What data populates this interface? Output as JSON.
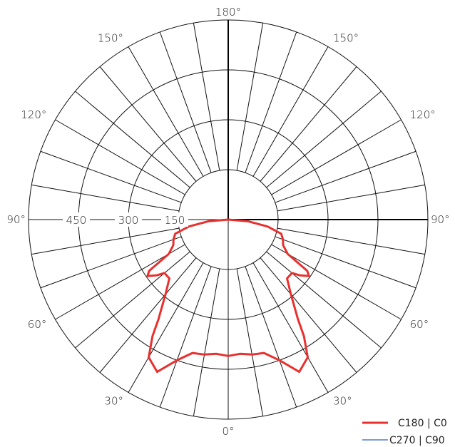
{
  "chart_data": {
    "type": "polar",
    "radial_ticks": [
      150,
      300,
      450
    ],
    "radial_max": 600,
    "angle_labels": [
      {
        "angle": 180,
        "text": "180°"
      },
      {
        "angle": 150,
        "text": "150°",
        "side": "left"
      },
      {
        "angle": 150,
        "text": "150°",
        "side": "right"
      },
      {
        "angle": 120,
        "text": "120°",
        "side": "left"
      },
      {
        "angle": 120,
        "text": "120°",
        "side": "right"
      },
      {
        "angle": 90,
        "text": "90°",
        "side": "left"
      },
      {
        "angle": 90,
        "text": "90°",
        "side": "right"
      },
      {
        "angle": 60,
        "text": "60°",
        "side": "left"
      },
      {
        "angle": 60,
        "text": "60°",
        "side": "right"
      },
      {
        "angle": 30,
        "text": "30°",
        "side": "left"
      },
      {
        "angle": 30,
        "text": "30°",
        "side": "right"
      },
      {
        "angle": 0,
        "text": "0°"
      }
    ],
    "radial_labels": [
      "150",
      "300",
      "450"
    ],
    "series": [
      {
        "name": "C180 | C0",
        "color": "#e8302e",
        "theta": [
          0,
          5,
          10,
          15,
          20,
          25,
          30,
          33,
          35,
          40,
          45,
          50,
          52,
          55,
          57,
          60,
          65,
          70,
          75,
          80,
          85,
          90
        ],
        "r": [
          410,
          405,
          412,
          415,
          450,
          505,
          478,
          418,
          365,
          293,
          250,
          250,
          272,
          296,
          283,
          206,
          182,
          175,
          165,
          120,
          60,
          0
        ]
      },
      {
        "name": "C270 | C90",
        "color": "#2f5fcc",
        "theta": [],
        "r": []
      }
    ]
  }
}
